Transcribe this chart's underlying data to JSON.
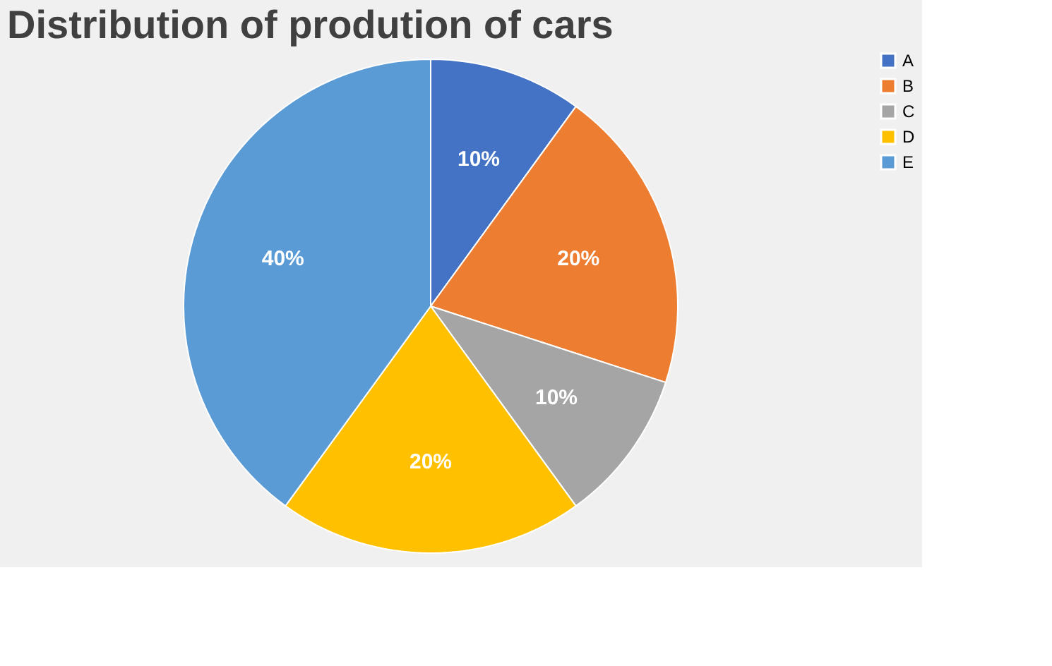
{
  "chart_data": {
    "type": "pie",
    "title": "Distribution of prodution of cars",
    "categories": [
      "A",
      "B",
      "C",
      "D",
      "E"
    ],
    "values": [
      10,
      20,
      10,
      20,
      40
    ],
    "colors": [
      "#4472c4",
      "#ed7d31",
      "#a5a5a5",
      "#ffc000",
      "#5b9bd5"
    ],
    "value_labels": [
      "10%",
      "20%",
      "10%",
      "20%",
      "40%"
    ],
    "legend": "right"
  }
}
